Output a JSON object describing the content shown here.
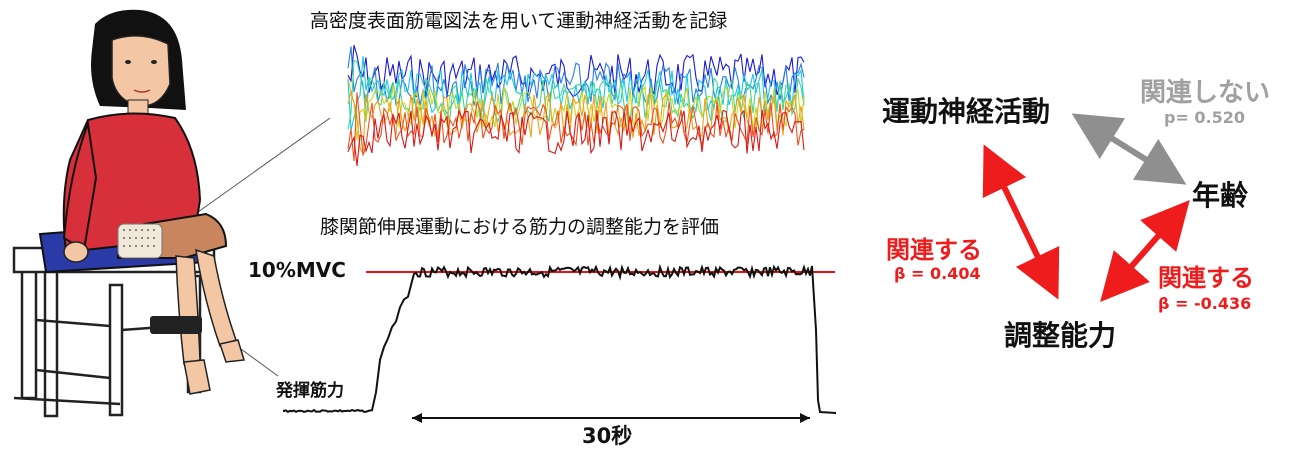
{
  "emg_caption": "高密度表面筋電図法を用いて運動神経活動を記録",
  "force_caption": "膝関節伸展運動における筋力の調整能力を評価",
  "mvc_label": "10%MVC",
  "force_axis_label": "発揮筋力",
  "duration_label": "30秒",
  "nodes": {
    "motor": "運動神経活動",
    "age": "年齢",
    "control": "調整能力"
  },
  "relations": {
    "motor_age": {
      "label": "関連しない",
      "stat": "p= 0.520"
    },
    "motor_control": {
      "label": "関連する",
      "stat": "β = 0.404"
    },
    "age_control": {
      "label": "関連する",
      "stat": "β = -0.436"
    }
  },
  "colors": {
    "related": "#ee1c1c",
    "unrelated": "#a0a0a0",
    "target_line": "#ee1111",
    "trace": "#111111"
  }
}
